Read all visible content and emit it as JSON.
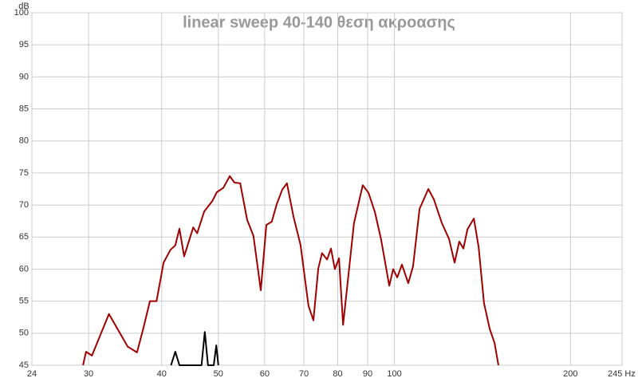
{
  "chart_data": {
    "type": "line",
    "title": "linear sweep 40-140 θεση ακροασης",
    "y_label": "dB",
    "xscale": "log",
    "xlim": [
      24,
      245
    ],
    "ylim": [
      45,
      100
    ],
    "xticks": [
      24,
      30,
      40,
      50,
      60,
      70,
      80,
      90,
      100,
      200,
      {
        "value": 245,
        "label": "245 Hz"
      }
    ],
    "yticks": [
      45,
      50,
      55,
      60,
      65,
      70,
      75,
      80,
      85,
      90,
      95,
      100
    ],
    "grid": true,
    "series": [
      {
        "color": "#a00000",
        "x": [
          29.35,
          29.7,
          30.4,
          32.5,
          33.7,
          35,
          36.3,
          37.2,
          38.2,
          39.2,
          40.3,
          41.4,
          42.2,
          42.9,
          43.7,
          45.3,
          46,
          47.3,
          48.8,
          49.7,
          51,
          52.3,
          53.3,
          54.5,
          56,
          57.4,
          59.1,
          60.4,
          61.7,
          62.9,
          64.3,
          65.5,
          67.2,
          69.1,
          71.3,
          72.7,
          74.1,
          75.2,
          76.7,
          77.9,
          79.1,
          80.4,
          81.7,
          83.8,
          85.3,
          88.3,
          90.3,
          92.6,
          94.9,
          98,
          99.5,
          101.1,
          103,
          105.6,
          107.6,
          110.4,
          114.3,
          116.8,
          120.5,
          124,
          126.7,
          129.1,
          131.2,
          133.3,
          136.7,
          139.3,
          142.3,
          145.5,
          148.3,
          150.6
        ],
        "values": [
          45,
          47.1,
          46.5,
          53,
          50.5,
          47.9,
          47,
          50.7,
          55,
          55,
          61,
          63,
          63.7,
          66.3,
          62,
          66.5,
          65.6,
          69,
          70.6,
          72,
          72.7,
          74.5,
          73.5,
          73.4,
          67.7,
          65.2,
          56.7,
          66.9,
          67.4,
          70.1,
          72.4,
          73.4,
          68.2,
          63.8,
          54.3,
          52,
          60.1,
          62.5,
          61.5,
          63.2,
          60,
          61.7,
          51.3,
          60.7,
          67.2,
          73.1,
          71.9,
          68.9,
          64.6,
          57.4,
          60,
          58.7,
          60.7,
          57.8,
          60.4,
          69.4,
          72.5,
          70.9,
          67.2,
          64.7,
          61,
          64.3,
          63.2,
          66.2,
          67.9,
          63.4,
          54.7,
          50.7,
          48.5,
          45
        ]
      },
      {
        "color": "#000000",
        "x": [
          41.5,
          42.2,
          42.9,
          46.8,
          47.4,
          48,
          49.1,
          49.6,
          50
        ],
        "values": [
          45,
          47.1,
          45,
          45,
          50.2,
          45,
          45,
          48.1,
          45
        ]
      }
    ]
  }
}
